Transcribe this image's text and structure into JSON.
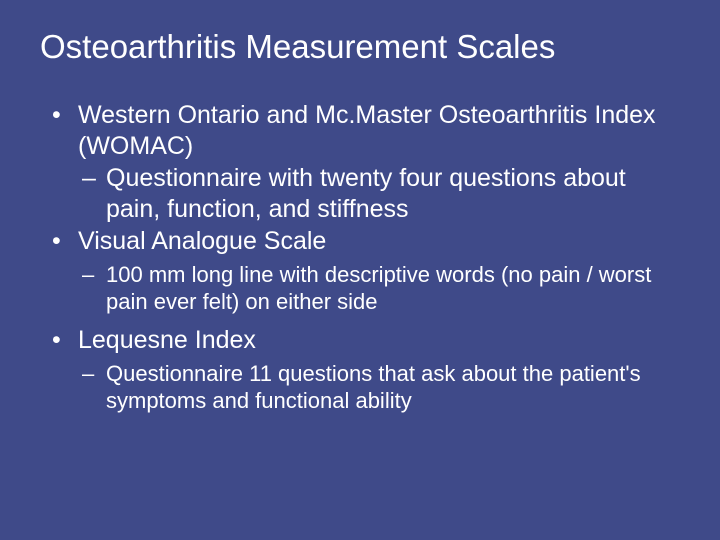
{
  "background_color": "#3f4a89",
  "text_color": "#ffffff",
  "font_family": "Arial",
  "title": "Osteoarthritis Measurement Scales",
  "title_fontsize": 33,
  "body_fontsize_large": 25,
  "body_fontsize_small": 22,
  "bullets": [
    {
      "text": "Western Ontario and Mc.Master Osteoarthritis Index (WOMAC)",
      "sub": [
        {
          "text": "Questionnaire with twenty four questions about pain, function, and stiffness",
          "size": "large"
        }
      ]
    },
    {
      "text": "Visual Analogue Scale",
      "sub": [
        {
          "text": "100 mm long line with descriptive words (no pain / worst pain ever felt) on either side",
          "size": "small"
        }
      ]
    },
    {
      "text": "Lequesne Index",
      "sub": [
        {
          "text": "Questionnaire 11 questions that ask about the patient's symptoms and functional ability",
          "size": "small"
        }
      ]
    }
  ]
}
